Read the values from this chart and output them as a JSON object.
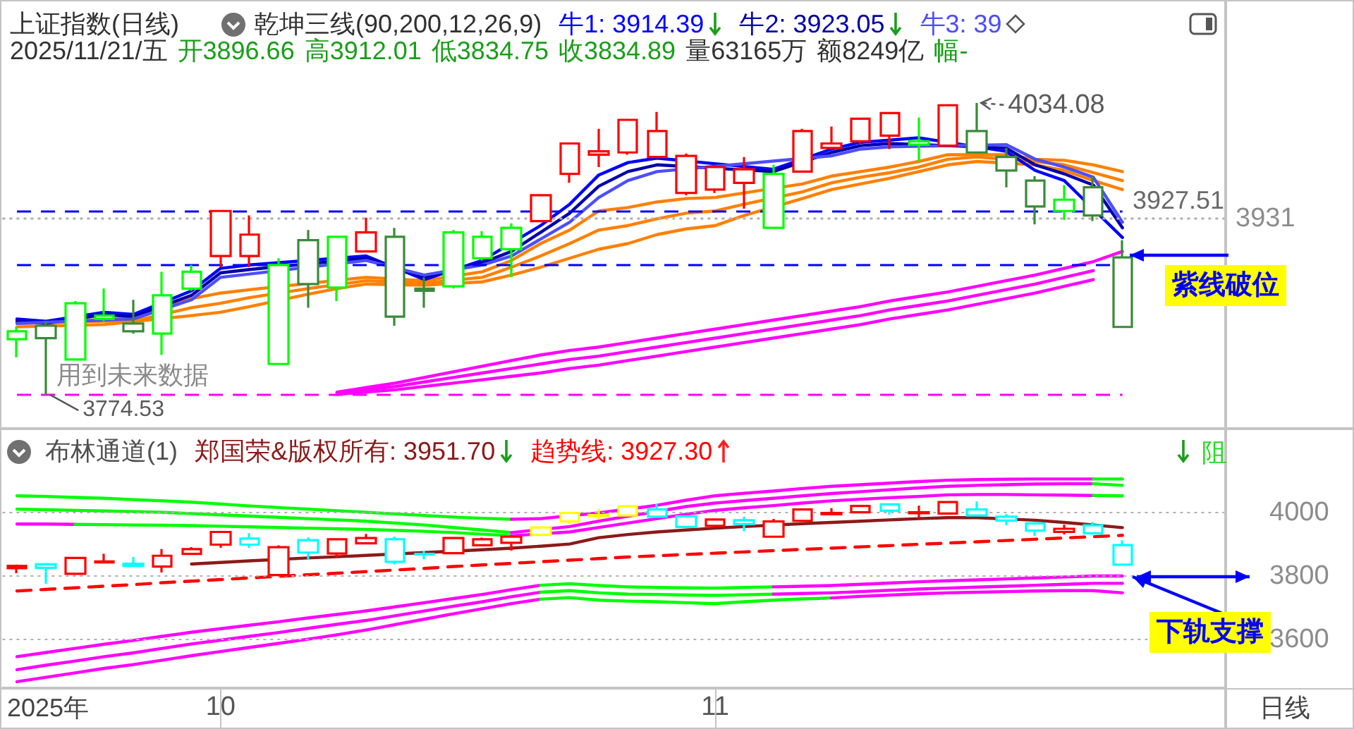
{
  "chart_data": [
    {
      "type": "candlestick",
      "title": "上证指数(日线)",
      "subtitle": "乾坤三线(90,200,12,26,9)",
      "categories": [
        null,
        null,
        null,
        null,
        null,
        null,
        null,
        "10",
        null,
        null,
        null,
        null,
        null,
        null,
        null,
        null,
        null,
        null,
        null,
        null,
        null,
        null,
        null,
        null,
        "11",
        null,
        null,
        null,
        null,
        null,
        null,
        null,
        null,
        null,
        null,
        null,
        null,
        null,
        null
      ],
      "ohlc": [
        [
          3824,
          3835,
          3808,
          3831
        ],
        [
          3836,
          3840,
          3774.53,
          3825
        ],
        [
          3806,
          3858,
          3806,
          3856
        ],
        [
          3842,
          3869,
          3840,
          3845
        ],
        [
          3838,
          3859,
          3829,
          3831
        ],
        [
          3829,
          3884,
          3810,
          3863
        ],
        [
          3869,
          3890,
          3867,
          3884
        ],
        [
          3898,
          3939,
          3888,
          3938
        ],
        [
          3917,
          3934,
          3888,
          3898
        ],
        [
          3802,
          3896,
          3802,
          3890
        ],
        [
          3912,
          3921,
          3852,
          3873
        ],
        [
          3870,
          3916,
          3858,
          3915
        ],
        [
          3902,
          3932,
          3902,
          3919
        ],
        [
          3915,
          3923,
          3836,
          3844
        ],
        [
          3869,
          3879,
          3852,
          3867
        ],
        [
          3871,
          3921,
          3869,
          3919
        ],
        [
          3896,
          3920,
          3894,
          3915
        ],
        [
          3904,
          3927,
          3879,
          3923
        ],
        [
          3929,
          3952,
          3929,
          3952
        ],
        [
          3971,
          3998,
          3963,
          3998
        ],
        [
          3988,
          4011,
          3977,
          3991
        ],
        [
          3990,
          4019,
          3988,
          4019
        ],
        [
          4009,
          4026,
          3986,
          3986
        ],
        [
          3987,
          3989,
          3952,
          3954
        ],
        [
          3957,
          3979,
          3954,
          3977
        ],
        [
          3975,
          3986,
          3940,
          3963
        ],
        [
          3923,
          3979,
          3922,
          3971
        ],
        [
          3973,
          4011,
          3972,
          4009
        ],
        [
          3994,
          4013,
          3994,
          3998
        ],
        [
          4000,
          4021,
          3998,
          4020
        ],
        [
          4025,
          4026,
          3993,
          4005
        ],
        [
          3997,
          4021,
          3982,
          4000
        ],
        [
          3996,
          4033,
          3995,
          4032
        ],
        [
          4009,
          4034.08,
          3990,
          3990
        ],
        [
          3986,
          3994,
          3959,
          3974
        ],
        [
          3965,
          3969,
          3926,
          3942
        ],
        [
          3938,
          3961,
          3930,
          3948
        ],
        [
          3959,
          3969,
          3929,
          3934
        ],
        [
          3896.66,
          3912.01,
          3834.75,
          3834.89
        ]
      ],
      "colors": [
        "#00ff00",
        "#3a8a3a",
        "#00ff00",
        "#00ff00",
        "#3a8a3a",
        "#00ff00",
        "#00ff00",
        "#ff0000",
        "#ff0000",
        "#00ff00",
        "#3a8a3a",
        "#00ff00",
        "#ff0000",
        "#3a8a3a",
        "#3a8a3a",
        "#00ff00",
        "#00ff00",
        "#00ff00",
        "#ff0000",
        "#ff0000",
        "#ff0000",
        "#ff0000",
        "#ff0000",
        "#ff0000",
        "#ff0000",
        "#ff0000",
        "#00ff00",
        "#ff0000",
        "#ff0000",
        "#ff0000",
        "#ff0000",
        "#00ff00",
        "#ff0000",
        "#3a8a3a",
        "#3a8a3a",
        "#3a8a3a",
        "#00ff00",
        "#3a8a3a",
        "#3a8a3a"
      ],
      "series": [
        {
          "type": "line",
          "color": "#ff8000",
          "values": [
            3841,
            3839,
            null,
            null,
            3843,
            null,
            3860,
            3865,
            3868,
            null,
            null,
            null,
            3879,
            null,
            3876,
            null,
            3884,
            3894,
            3909,
            3921,
            3938,
            3941,
            3946,
            3949,
            3950,
            3954,
            null,
            3962,
            3969,
            3973,
            3977,
            3982,
            3988,
            null,
            3988,
            3984,
            3983,
            3979,
            3973
          ]
        },
        {
          "type": "line",
          "color": "#ff8000",
          "values": [
            3838,
            null,
            null,
            3840,
            3840,
            null,
            3852,
            3856,
            3861,
            null,
            3869,
            null,
            3876,
            null,
            3874,
            null,
            3879,
            3888,
            3898,
            3909,
            3921,
            3925,
            3931,
            3936,
            3938,
            3944,
            null,
            3955,
            3963,
            3968,
            3972,
            3977,
            3984,
            3986,
            null,
            3982,
            3979,
            3972,
            3965
          ]
        },
        {
          "type": "line",
          "color": "#ff8000",
          "values": [
            3835,
            null,
            null,
            3837,
            null,
            null,
            3845,
            3848,
            3853,
            null,
            3864,
            3869,
            3873,
            null,
            3872,
            null,
            3875,
            3881,
            3888,
            3896,
            3904,
            3909,
            3917,
            3922,
            3925,
            3934,
            null,
            3949,
            3957,
            3962,
            3967,
            3973,
            3979,
            3982,
            null,
            3979,
            3974,
            3965,
            3957
          ]
        },
        {
          "type": "line",
          "color": "#ff00ff",
          "values": [
            null,
            null,
            null,
            null,
            null,
            null,
            null,
            null,
            null,
            null,
            null,
            3777,
            3781,
            3785,
            3790,
            3795,
            3800,
            3805,
            3810,
            3814,
            3817,
            3821,
            3825,
            3829,
            3833,
            3837,
            3841,
            3845,
            3849,
            3853,
            3858,
            3862,
            3866,
            3871,
            3876,
            3881,
            3887,
            3893,
            3902
          ]
        },
        {
          "type": "line",
          "color": "#ff00ff",
          "values": [
            null,
            null,
            null,
            null,
            null,
            null,
            null,
            null,
            null,
            null,
            null,
            3776,
            3779,
            3782,
            3786,
            3790,
            3794,
            3798,
            3802,
            3806,
            3809,
            3813,
            3817,
            3821,
            3825,
            3829,
            3833,
            3837,
            3841,
            3845,
            3850,
            3854,
            3858,
            3863,
            3868,
            3873,
            3879,
            3885,
            null
          ]
        },
        {
          "type": "line",
          "color": "#ff00ff",
          "values": [
            null,
            null,
            null,
            null,
            null,
            null,
            null,
            null,
            null,
            null,
            null,
            3775,
            3777,
            3779,
            3782,
            3785,
            3788,
            3791,
            3794,
            3798,
            3801,
            3805,
            3809,
            3813,
            3817,
            3821,
            3825,
            3829,
            3833,
            3837,
            3842,
            3846,
            3850,
            3855,
            3860,
            3865,
            3871,
            3877,
            null
          ]
        },
        {
          "type": "line",
          "name": "牛1: 3914.39",
          "color": "#0000ff",
          "values": [
            3842,
            3840,
            null,
            3848,
            3846,
            null,
            3867,
            3887,
            3890,
            null,
            null,
            null,
            3898,
            null,
            3877,
            null,
            3894,
            null,
            3925,
            3944,
            3970,
            3981,
            3985,
            null,
            null,
            null,
            3975,
            null,
            3993,
            3999,
            4001,
            4003,
            null,
            null,
            3991,
            3974,
            3965,
            null,
            3914.39
          ]
        },
        {
          "type": "line",
          "name": "牛2: 3923.05",
          "color": "#0000aa",
          "values": [
            3840,
            3838,
            null,
            3846,
            3844,
            null,
            3863,
            3883,
            3886,
            null,
            null,
            null,
            3896,
            null,
            3879,
            null,
            3892,
            3902,
            3919,
            3936,
            3960,
            3973,
            3979,
            null,
            null,
            null,
            3973,
            null,
            3990,
            3996,
            3998,
            null,
            null,
            null,
            3994,
            3979,
            3971,
            3961,
            3923.05
          ]
        },
        {
          "type": "line",
          "name": "牛3: 39",
          "color": "#4d4dff",
          "values": [
            3838,
            null,
            null,
            null,
            3842,
            null,
            3859,
            3879,
            3882,
            null,
            null,
            null,
            3894,
            null,
            3881,
            null,
            3890,
            3898,
            3913,
            3928,
            3950,
            3965,
            3973,
            null,
            null,
            null,
            null,
            null,
            3987,
            3993,
            3995,
            null,
            null,
            null,
            3997,
            3984,
            3977,
            3968,
            3928
          ]
        }
      ],
      "tick_labels": false,
      "legend": "top",
      "marker": "none",
      "ref_lines": [
        {
          "axis": "y",
          "value": 3931,
          "label": "3931",
          "color": "#b0b0b0",
          "line_style": "dotted"
        },
        {
          "axis": "y",
          "value": 3938,
          "color": "#0000ff",
          "line_style": "dashed"
        },
        {
          "axis": "y",
          "value": 3890,
          "color": "#0000ff",
          "line_style": "dashed"
        },
        {
          "axis": "y",
          "value": 3774.53,
          "color": "#ff00ff",
          "line_style": "dashed"
        }
      ],
      "annotations": [
        "2025/11/21/五",
        "开3896.66",
        "高3912.01",
        "低3834.75",
        "收3834.89",
        "量63165万",
        "额8249亿",
        "幅-",
        "4034.08",
        "3774.53",
        "用到未来数据",
        "3927.51",
        "紫线破位"
      ]
    },
    {
      "type": "candlestick",
      "title": "布林通道(1)",
      "categories": [
        null,
        null,
        null,
        null,
        null,
        null,
        null,
        "10",
        null,
        null,
        null,
        null,
        null,
        null,
        null,
        null,
        null,
        null,
        null,
        null,
        null,
        null,
        null,
        null,
        "11",
        null,
        null,
        null,
        null,
        null,
        null,
        null,
        null,
        null,
        null,
        null,
        null,
        null,
        null
      ],
      "ohlc": [
        [
          3824,
          3835,
          3808,
          3831
        ],
        [
          3836,
          3840,
          3774.53,
          3825
        ],
        [
          3806,
          3858,
          3806,
          3856
        ],
        [
          3842,
          3869,
          3840,
          3845
        ],
        [
          3838,
          3859,
          3829,
          3831
        ],
        [
          3829,
          3884,
          3810,
          3863
        ],
        [
          3869,
          3890,
          3867,
          3884
        ],
        [
          3898,
          3939,
          3888,
          3938
        ],
        [
          3917,
          3934,
          3888,
          3898
        ],
        [
          3802,
          3896,
          3802,
          3890
        ],
        [
          3912,
          3921,
          3852,
          3873
        ],
        [
          3870,
          3916,
          3858,
          3915
        ],
        [
          3902,
          3932,
          3902,
          3919
        ],
        [
          3915,
          3923,
          3836,
          3844
        ],
        [
          3869,
          3879,
          3852,
          3867
        ],
        [
          3871,
          3921,
          3869,
          3919
        ],
        [
          3896,
          3920,
          3894,
          3915
        ],
        [
          3904,
          3927,
          3879,
          3923
        ],
        [
          3929,
          3952,
          3929,
          3952
        ],
        [
          3971,
          3998,
          3963,
          3998
        ],
        [
          3988,
          4011,
          3977,
          3991
        ],
        [
          3990,
          4019,
          3988,
          4019
        ],
        [
          4009,
          4026,
          3986,
          3986
        ],
        [
          3987,
          3989,
          3952,
          3954
        ],
        [
          3957,
          3979,
          3954,
          3977
        ],
        [
          3975,
          3986,
          3940,
          3963
        ],
        [
          3923,
          3979,
          3922,
          3971
        ],
        [
          3973,
          4011,
          3972,
          4009
        ],
        [
          3994,
          4013,
          3994,
          3998
        ],
        [
          4000,
          4021,
          3998,
          4020
        ],
        [
          4025,
          4026,
          3993,
          4005
        ],
        [
          3997,
          4021,
          3982,
          4000
        ],
        [
          3996,
          4033,
          3995,
          4032
        ],
        [
          4009,
          4034.08,
          3990,
          3990
        ],
        [
          3986,
          3994,
          3959,
          3974
        ],
        [
          3965,
          3969,
          3926,
          3942
        ],
        [
          3938,
          3961,
          3930,
          3948
        ],
        [
          3959,
          3969,
          3929,
          3934
        ],
        [
          3896.66,
          3912.01,
          3834.75,
          3834.89
        ]
      ],
      "colors": [
        "#ff0000",
        "#00ffff",
        "#ff0000",
        "#ff0000",
        "#00ffff",
        "#ff0000",
        "#ff0000",
        "#ff0000",
        "#00ffff",
        "#ff0000",
        "#00ffff",
        "#ff0000",
        "#ff0000",
        "#00ffff",
        "#00ffff",
        "#ff0000",
        "#ff0000",
        "#ff0000",
        "#ffff00",
        "#ffff00",
        "#ffff00",
        "#ffff00",
        "#00ffff",
        "#00ffff",
        "#ff0000",
        "#00ffff",
        "#ff0000",
        "#ff0000",
        "#ff0000",
        "#ff0000",
        "#00ffff",
        "#ff0000",
        "#ff0000",
        "#00ffff",
        "#00ffff",
        "#00ffff",
        "#ff0000",
        "#00ffff",
        "#00ffff"
      ],
      "series": [
        {
          "type": "line",
          "color": "#00ff00",
          "values": [
            4052,
            4050,
            4047,
            4044,
            4040,
            4036,
            4032,
            4026,
            4020,
            4015,
            4010,
            4005,
            4000,
            3995,
            3990,
            3985,
            3981,
            3978,
            null,
            null,
            null,
            null,
            null,
            null,
            null,
            null,
            null,
            null,
            null,
            null,
            null,
            null,
            null,
            null,
            null,
            null,
            null,
            null,
            null
          ]
        },
        {
          "type": "line",
          "color": "#ff00ff",
          "values": [
            null,
            null,
            null,
            null,
            null,
            null,
            null,
            null,
            null,
            null,
            null,
            null,
            null,
            null,
            null,
            null,
            null,
            3978,
            3980,
            null,
            3998,
            null,
            4022,
            4038,
            4052,
            4060,
            4067,
            4075,
            4082,
            4087,
            4092,
            4097,
            4101,
            4103,
            4104,
            4105,
            4105,
            4105,
            null
          ]
        },
        {
          "type": "line",
          "color": "#00ff00",
          "values": [
            null,
            null,
            null,
            null,
            null,
            null,
            null,
            null,
            null,
            null,
            null,
            null,
            null,
            null,
            null,
            null,
            null,
            null,
            null,
            null,
            null,
            null,
            null,
            null,
            null,
            null,
            null,
            null,
            null,
            null,
            null,
            null,
            null,
            null,
            null,
            null,
            null,
            4105,
            4105
          ]
        },
        {
          "type": "line",
          "color": "#00ff00",
          "values": [
            4010,
            4008,
            4006,
            4004,
            4002,
            4000,
            3996,
            3992,
            3988,
            3984,
            3980,
            3976,
            3972,
            3966,
            3960,
            3952,
            3944,
            3936,
            null,
            null,
            null,
            null,
            null,
            null,
            null,
            null,
            null,
            null,
            null,
            null,
            null,
            null,
            null,
            null,
            null,
            null,
            null,
            null,
            null
          ]
        },
        {
          "type": "line",
          "color": "#ff00ff",
          "values": [
            null,
            null,
            null,
            null,
            null,
            null,
            null,
            null,
            null,
            null,
            null,
            null,
            null,
            null,
            null,
            null,
            null,
            3936,
            null,
            3955,
            3972,
            null,
            null,
            4018,
            4029,
            4037,
            4044,
            4052,
            4059,
            4065,
            4071,
            4077,
            4082,
            4085,
            4087,
            4089,
            4090,
            4090,
            null
          ]
        },
        {
          "type": "line",
          "color": "#00ff00",
          "values": [
            null,
            null,
            null,
            null,
            null,
            null,
            null,
            null,
            null,
            null,
            null,
            null,
            null,
            null,
            null,
            null,
            null,
            null,
            null,
            null,
            null,
            null,
            null,
            null,
            null,
            null,
            null,
            null,
            null,
            null,
            null,
            null,
            null,
            null,
            null,
            null,
            null,
            4090,
            4085
          ]
        },
        {
          "type": "line",
          "color": "#ff00ff",
          "values": [
            3963,
            3963,
            3962,
            null,
            null,
            null,
            null,
            null,
            null,
            null,
            null,
            null,
            null,
            null,
            null,
            null,
            null,
            null,
            null,
            null,
            null,
            null,
            null,
            null,
            null,
            null,
            null,
            null,
            null,
            null,
            null,
            null,
            null,
            null,
            null,
            null,
            null,
            null,
            null
          ]
        },
        {
          "type": "line",
          "color": "#00ff00",
          "values": [
            null,
            null,
            3962,
            3961,
            3960,
            3959,
            3958,
            3956,
            3954,
            3952,
            3950,
            3948,
            3946,
            3943,
            3940,
            3936,
            3931,
            3926,
            null,
            null,
            null,
            null,
            null,
            null,
            null,
            null,
            null,
            null,
            null,
            null,
            null,
            null,
            null,
            null,
            null,
            null,
            null,
            null,
            null
          ]
        },
        {
          "type": "line",
          "color": "#ff00ff",
          "values": [
            null,
            null,
            null,
            null,
            null,
            null,
            null,
            null,
            null,
            null,
            null,
            null,
            null,
            null,
            null,
            null,
            null,
            3926,
            null,
            3938,
            3952,
            3966,
            3980,
            3994,
            4006,
            4014,
            4021,
            4029,
            4036,
            4041,
            4046,
            4050,
            4055,
            4056,
            4056,
            4055,
            4054,
            4053,
            null
          ]
        },
        {
          "type": "line",
          "color": "#00ff00",
          "values": [
            null,
            null,
            null,
            null,
            null,
            null,
            null,
            null,
            null,
            null,
            null,
            null,
            null,
            null,
            null,
            null,
            null,
            null,
            null,
            null,
            null,
            null,
            null,
            null,
            null,
            null,
            null,
            null,
            null,
            null,
            null,
            null,
            null,
            null,
            null,
            null,
            null,
            4053,
            4052
          ]
        },
        {
          "type": "line",
          "color": "#ff00ff",
          "values": [
            3545,
            3558,
            3571,
            3584,
            3596,
            3609,
            3622,
            3633,
            3644,
            3655,
            3667,
            3678,
            3689,
            3702,
            3715,
            3728,
            3741,
            3756,
            3770,
            null,
            null,
            null,
            null,
            null,
            null,
            null,
            null,
            null,
            null,
            null,
            null,
            null,
            null,
            null,
            null,
            null,
            null,
            null,
            null
          ]
        },
        {
          "type": "line",
          "color": "#00ff00",
          "values": [
            null,
            null,
            null,
            null,
            null,
            null,
            null,
            null,
            null,
            null,
            null,
            null,
            null,
            null,
            null,
            null,
            null,
            null,
            3770,
            3775,
            3769,
            3765,
            3763,
            3762,
            3761,
            3763,
            3765,
            null,
            null,
            null,
            null,
            null,
            null,
            null,
            null,
            null,
            null,
            null,
            null
          ]
        },
        {
          "type": "line",
          "color": "#ff00ff",
          "values": [
            null,
            null,
            null,
            null,
            null,
            null,
            null,
            null,
            null,
            null,
            null,
            null,
            null,
            null,
            null,
            null,
            null,
            null,
            null,
            null,
            null,
            null,
            null,
            null,
            null,
            null,
            3765,
            3767,
            3769,
            3773,
            3777,
            3781,
            3784,
            3787,
            3790,
            3793,
            3796,
            3799,
            3799
          ]
        },
        {
          "type": "line",
          "color": "#ff00ff",
          "values": [
            3504,
            3518,
            3531,
            3545,
            3557,
            3571,
            3585,
            3597,
            3609,
            3621,
            3634,
            3647,
            3659,
            3674,
            3689,
            3704,
            3718,
            3734,
            3748,
            null,
            null,
            null,
            null,
            null,
            null,
            null,
            null,
            null,
            null,
            null,
            null,
            null,
            null,
            null,
            null,
            null,
            null,
            null,
            null
          ]
        },
        {
          "type": "line",
          "color": "#00ff00",
          "values": [
            null,
            null,
            null,
            null,
            null,
            null,
            null,
            null,
            null,
            null,
            null,
            null,
            null,
            null,
            null,
            null,
            null,
            null,
            3748,
            3753,
            3746,
            3742,
            3741,
            3739,
            3738,
            3740,
            3742,
            null,
            null,
            null,
            null,
            null,
            null,
            null,
            null,
            null,
            null,
            null,
            null
          ]
        },
        {
          "type": "line",
          "color": "#ff00ff",
          "values": [
            null,
            null,
            null,
            null,
            null,
            null,
            null,
            null,
            null,
            null,
            null,
            null,
            null,
            null,
            null,
            null,
            null,
            null,
            null,
            null,
            null,
            null,
            null,
            null,
            null,
            null,
            3742,
            3744,
            3746,
            3750,
            3754,
            3758,
            3761,
            3764,
            3767,
            3770,
            3773,
            3776,
            3776
          ]
        },
        {
          "type": "line",
          "color": "#ff00ff",
          "values": [
            3466,
            3480,
            3494,
            3508,
            3520,
            3534,
            3548,
            3561,
            3574,
            3587,
            3600,
            3614,
            3629,
            3646,
            3663,
            3680,
            3696,
            3712,
            3726,
            null,
            null,
            null,
            null,
            null,
            null,
            null,
            null,
            null,
            null,
            null,
            null,
            null,
            null,
            null,
            null,
            null,
            null,
            null,
            null
          ]
        },
        {
          "type": "line",
          "color": "#00ff00",
          "values": [
            null,
            null,
            null,
            null,
            null,
            null,
            null,
            null,
            null,
            null,
            null,
            null,
            null,
            null,
            null,
            null,
            null,
            null,
            3726,
            3731,
            3723,
            3720,
            3718,
            3715,
            3712,
            3718,
            3723,
            3727,
            3730,
            null,
            null,
            null,
            null,
            null,
            null,
            null,
            null,
            null,
            null
          ]
        },
        {
          "type": "line",
          "color": "#ff00ff",
          "values": [
            null,
            null,
            null,
            null,
            null,
            null,
            null,
            null,
            null,
            null,
            null,
            null,
            null,
            null,
            null,
            null,
            null,
            null,
            null,
            null,
            null,
            null,
            null,
            null,
            null,
            null,
            null,
            null,
            3730,
            3735,
            3739,
            3743,
            3746,
            3748,
            3750,
            3752,
            3753,
            3753,
            3746
          ]
        },
        {
          "type": "line",
          "name": "郑国荣&版权所有: 3951.70",
          "color": "#8b1a1a",
          "values": [
            null,
            null,
            null,
            null,
            null,
            null,
            3837,
            3842,
            3847,
            null,
            3856,
            3860,
            3864,
            null,
            null,
            null,
            3882,
            3887,
            3893,
            3900,
            3920,
            3930,
            3938,
            3944,
            3950,
            3955,
            null,
            3964,
            3968,
            3972,
            3976,
            3980,
            3983,
            3983,
            null,
            3975,
            3968,
            null,
            3951.7
          ]
        },
        {
          "type": "line",
          "name": "趋势线: 3927.30",
          "color": "#ff0000",
          "line_style": "dashed",
          "values": [
            3752,
            3757,
            3762,
            3767,
            3772,
            3778,
            3783,
            3788,
            3793,
            3798,
            3803,
            3808,
            3813,
            3818,
            3823,
            3829,
            3834,
            3839,
            3844,
            3849,
            3854,
            3859,
            3863,
            3867,
            3871,
            3875,
            3879,
            3883,
            3887,
            3891,
            3895,
            3899,
            3903,
            3907,
            3911,
            3915,
            3919,
            3923,
            3927.3
          ]
        }
      ],
      "ylim": [
        3450,
        4260
      ],
      "yticks": [
        3600,
        3800,
        4000
      ],
      "grid": "y",
      "legend": "top",
      "marker": "none",
      "annotations": [
        "2025年",
        "阻",
        "日线",
        "下轨支撑"
      ]
    }
  ]
}
